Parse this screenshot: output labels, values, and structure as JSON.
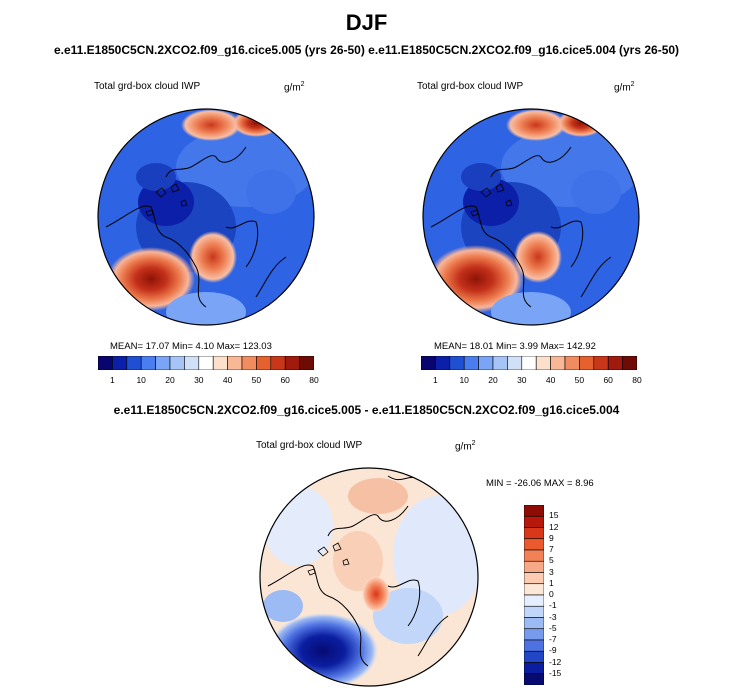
{
  "page": {
    "title": "DJF",
    "case_a": "e.e11.E1850C5CN.2XCO2.f09_g16.cice5.005 (yrs 26-50)",
    "case_b": "e.e11.E1850C5CN.2XCO2.f09_g16.cice5.004 (yrs 26-50)",
    "diff_title": "e.e11.E1850C5CN.2XCO2.f09_g16.cice5.005 - e.e11.E1850C5CN.2XCO2.f09_g16.cice5.004"
  },
  "panels": {
    "left": {
      "variable": "Total grd-box cloud IWP",
      "units": "g/m",
      "units_exp": "2",
      "stats": "MEAN=  17.07  Min=    4.10  Max= 123.03"
    },
    "right": {
      "variable": "Total grd-box cloud IWP",
      "units": "g/m",
      "units_exp": "2",
      "stats": "MEAN=  18.01  Min=    3.99  Max= 142.92"
    },
    "diff": {
      "variable": "Total grd-box cloud IWP",
      "units": "g/m",
      "units_exp": "2",
      "stats": "MIN = -26.06 MAX =   8.96"
    }
  },
  "colorbar_abs": {
    "labels": [
      "1",
      "10",
      "20",
      "30",
      "40",
      "50",
      "60",
      "80"
    ],
    "colors": [
      "#08066e",
      "#0b1fa8",
      "#1f4fd2",
      "#4a7ef0",
      "#7aa4f5",
      "#a7c4f7",
      "#cfe0f7",
      "#ffffff",
      "#fde0cc",
      "#f8b896",
      "#f08c60",
      "#e5612f",
      "#c9371a",
      "#a01a0d",
      "#6e0b05"
    ]
  },
  "colorbar_diff": {
    "labels": [
      "15",
      "12",
      "9",
      "7",
      "5",
      "3",
      "1",
      "0",
      "-1",
      "-3",
      "-5",
      "-7",
      "-9",
      "-12",
      "-15"
    ],
    "colors": [
      "#8e0c05",
      "#b7180b",
      "#d8371a",
      "#ea5a2e",
      "#f28157",
      "#f7a886",
      "#fccbb2",
      "#fde8d8",
      "#e6efff",
      "#c2d6f9",
      "#9cbaf4",
      "#7799ee",
      "#4f72e2",
      "#2346c7",
      "#0b1ea1",
      "#060b72"
    ]
  }
}
